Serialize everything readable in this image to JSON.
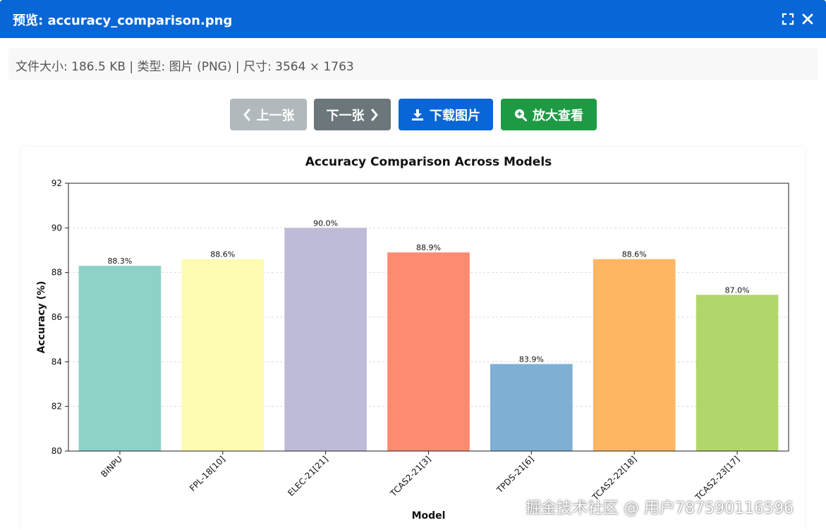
{
  "window": {
    "title": "预览: accuracy_comparison.png",
    "maximize_icon": "maximize-icon",
    "close_icon": "close-icon",
    "header_color": "#0966d6"
  },
  "info": {
    "text": "文件大小: 186.5 KB | 类型: 图片 (PNG) | 尺寸: 3564 × 1763"
  },
  "toolbar": {
    "prev_label": "上一张",
    "next_label": "下一张",
    "download_label": "下载图片",
    "zoom_label": "放大查看",
    "prev_icon": "chevron-left-icon",
    "next_icon": "chevron-right-icon",
    "download_icon": "download-icon",
    "zoom_icon": "zoom-in-icon"
  },
  "chart_data": {
    "type": "bar",
    "title": "Accuracy Comparison Across Models",
    "xlabel": "Model",
    "ylabel": "Accuracy (%)",
    "ylim": [
      80,
      92
    ],
    "yticks": [
      80,
      82,
      84,
      86,
      88,
      90,
      92
    ],
    "grid": true,
    "categories": [
      "BiNPU",
      "FPL-18[10]",
      "ELEC-21[21]",
      "TCAS2-21[3]",
      "TPDS-21[6]",
      "TCAS2-22[18]",
      "TCAS2-23[17]"
    ],
    "values": [
      88.3,
      88.6,
      90.0,
      88.9,
      83.9,
      88.6,
      87.0
    ],
    "data_labels": [
      "88.3%",
      "88.6%",
      "90.0%",
      "88.9%",
      "83.9%",
      "88.6%",
      "87.0%"
    ],
    "colors": [
      "#8dd1c7",
      "#fefbb2",
      "#bdbbd8",
      "#fd8b72",
      "#7fb0d4",
      "#fdb663",
      "#b2d66b"
    ]
  },
  "watermark": {
    "text": "掘金技术社区 @ 用户787590116596"
  }
}
